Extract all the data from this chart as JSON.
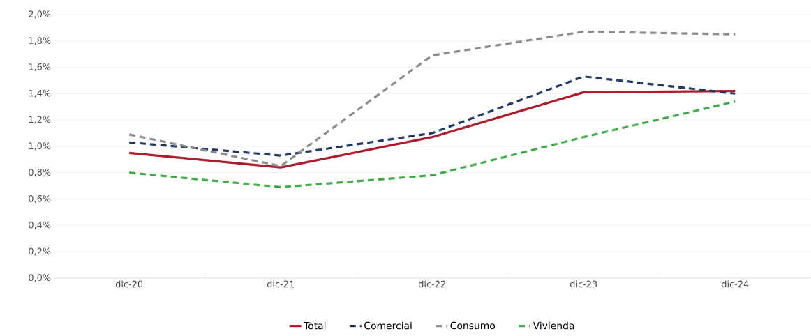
{
  "chart_data": {
    "type": "line",
    "categories": [
      "dic-20",
      "dic-21",
      "dic-22",
      "dic-23",
      "dic-24"
    ],
    "series": [
      {
        "name": "Total",
        "color": "#b01c2e",
        "line_style": "solid",
        "values": [
          0.95,
          0.84,
          1.07,
          1.41,
          1.42
        ]
      },
      {
        "name": "Comercial",
        "color": "#203864",
        "line_style": "dashed",
        "values": [
          1.03,
          0.93,
          1.1,
          1.53,
          1.4
        ]
      },
      {
        "name": "Consumo",
        "color": "#8c8c8c",
        "line_style": "dashed",
        "values": [
          1.09,
          0.85,
          1.69,
          1.87,
          1.85
        ]
      },
      {
        "name": "Vivienda",
        "color": "#3fae49",
        "line_style": "dashed",
        "values": [
          0.8,
          0.69,
          0.78,
          1.07,
          1.34
        ]
      }
    ],
    "ylim": [
      0,
      2.0
    ],
    "yticks": [
      {
        "value": 0,
        "label": "0,0%"
      },
      {
        "value": 0.2,
        "label": "0,2%"
      },
      {
        "value": 0.4,
        "label": "0,4%"
      },
      {
        "value": 0.6,
        "label": "0,6%"
      },
      {
        "value": 0.8,
        "label": "0,8%"
      },
      {
        "value": 1.0,
        "label": "1,0%"
      },
      {
        "value": 1.2,
        "label": "1,2%"
      },
      {
        "value": 1.4,
        "label": "1,4%"
      },
      {
        "value": 1.6,
        "label": "1,6%"
      },
      {
        "value": 1.8,
        "label": "1,8%"
      },
      {
        "value": 2.0,
        "label": "2,0%"
      }
    ],
    "grid": "y",
    "legend": "bottom"
  }
}
